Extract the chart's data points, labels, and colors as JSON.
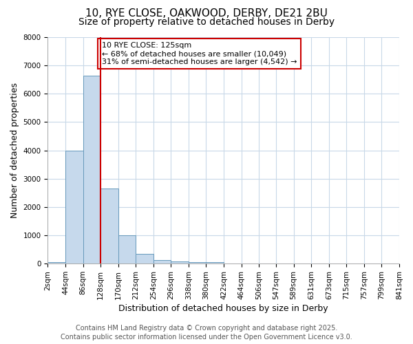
{
  "title_line1": "10, RYE CLOSE, OAKWOOD, DERBY, DE21 2BU",
  "title_line2": "Size of property relative to detached houses in Derby",
  "xlabel": "Distribution of detached houses by size in Derby",
  "ylabel": "Number of detached properties",
  "bin_edges": [
    2,
    44,
    86,
    128,
    170,
    212,
    254,
    296,
    338,
    380,
    422,
    464,
    506,
    547,
    589,
    631,
    673,
    715,
    757,
    799,
    841
  ],
  "bar_heights": [
    50,
    4000,
    6650,
    2650,
    1000,
    340,
    130,
    70,
    50,
    50,
    0,
    0,
    0,
    0,
    0,
    0,
    0,
    0,
    0,
    0
  ],
  "bar_color": "#c6d9ec",
  "bar_edge_color": "#6699bb",
  "vline_x": 128,
  "vline_color": "#cc0000",
  "annotation_text": "10 RYE CLOSE: 125sqm\n← 68% of detached houses are smaller (10,049)\n31% of semi-detached houses are larger (4,542) →",
  "annotation_box_facecolor": "#ffffff",
  "annotation_box_edgecolor": "#cc0000",
  "ylim": [
    0,
    8000
  ],
  "yticks": [
    0,
    1000,
    2000,
    3000,
    4000,
    5000,
    6000,
    7000,
    8000
  ],
  "footer_text": "Contains HM Land Registry data © Crown copyright and database right 2025.\nContains public sector information licensed under the Open Government Licence v3.0.",
  "bg_color": "#ffffff",
  "grid_color": "#c8d8e8",
  "title1_fontsize": 11,
  "title2_fontsize": 10,
  "axis_label_fontsize": 9,
  "tick_fontsize": 7.5,
  "annotation_fontsize": 8,
  "footer_fontsize": 7
}
